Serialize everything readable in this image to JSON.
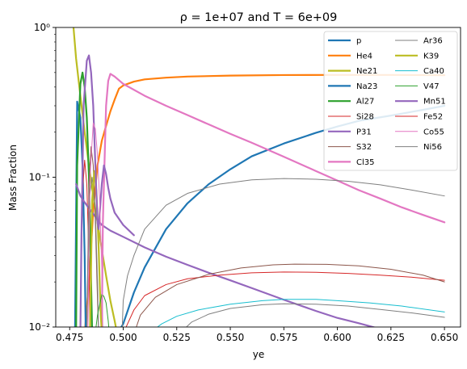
{
  "chart_data": {
    "type": "line",
    "title": "ρ = 1e+07 and T = 6e+09",
    "xlabel": "ye",
    "ylabel": "Mass Fraction",
    "xlim": [
      0.4685,
      0.6575
    ],
    "ylim": [
      0.01,
      1.0
    ],
    "yscale": "log",
    "x_ticks": [
      0.475,
      0.5,
      0.525,
      0.55,
      0.575,
      0.6,
      0.625,
      0.65
    ],
    "x_tick_labels": [
      "0.475",
      "0.500",
      "0.525",
      "0.550",
      "0.575",
      "0.600",
      "0.625",
      "0.650"
    ],
    "y_ticks": [
      0.01,
      0.1,
      1.0
    ],
    "y_tick_labels": [
      "10⁻²",
      "10⁻¹",
      "10⁰"
    ],
    "legend_position": "top-right",
    "grid": false,
    "series": [
      {
        "name": "p",
        "color": "#1f77b4",
        "width": 2.2,
        "points": [
          [
            0.498,
            0.0094
          ],
          [
            0.5,
            0.0105
          ],
          [
            0.505,
            0.017
          ],
          [
            0.51,
            0.025
          ],
          [
            0.52,
            0.045
          ],
          [
            0.53,
            0.067
          ],
          [
            0.54,
            0.09
          ],
          [
            0.55,
            0.113
          ],
          [
            0.56,
            0.138
          ],
          [
            0.575,
            0.168
          ],
          [
            0.59,
            0.198
          ],
          [
            0.6,
            0.218
          ],
          [
            0.61,
            0.238
          ],
          [
            0.625,
            0.258
          ],
          [
            0.64,
            0.282
          ],
          [
            0.65,
            0.3
          ]
        ]
      },
      {
        "name": "He4",
        "color": "#ff7f0e",
        "width": 2.2,
        "points": [
          [
            0.482,
            0.009
          ],
          [
            0.484,
            0.02
          ],
          [
            0.486,
            0.06
          ],
          [
            0.488,
            0.12
          ],
          [
            0.49,
            0.175
          ],
          [
            0.492,
            0.22
          ],
          [
            0.494,
            0.275
          ],
          [
            0.496,
            0.33
          ],
          [
            0.498,
            0.39
          ],
          [
            0.5,
            0.41
          ],
          [
            0.505,
            0.435
          ],
          [
            0.51,
            0.45
          ],
          [
            0.52,
            0.462
          ],
          [
            0.53,
            0.47
          ],
          [
            0.55,
            0.477
          ],
          [
            0.575,
            0.481
          ],
          [
            0.6,
            0.482
          ],
          [
            0.625,
            0.482
          ],
          [
            0.65,
            0.48
          ]
        ]
      },
      {
        "name": "Ne21",
        "color": "#bcbd22",
        "width": 2.2,
        "points": [
          [
            0.4765,
            1.12
          ],
          [
            0.478,
            0.62
          ],
          [
            0.48,
            0.35
          ],
          [
            0.482,
            0.2
          ],
          [
            0.484,
            0.12
          ],
          [
            0.486,
            0.075
          ],
          [
            0.488,
            0.05
          ],
          [
            0.49,
            0.033
          ],
          [
            0.492,
            0.022
          ],
          [
            0.494,
            0.015
          ],
          [
            0.496,
            0.011
          ],
          [
            0.497,
            0.0093
          ]
        ]
      },
      {
        "name": "Na23",
        "color": "#1f77b4",
        "width": 2.2,
        "points": [
          [
            0.4775,
            0.0092
          ],
          [
            0.4785,
            0.32
          ],
          [
            0.48,
            0.25
          ],
          [
            0.481,
            0.12
          ],
          [
            0.482,
            0.03
          ],
          [
            0.4825,
            0.0092
          ]
        ]
      },
      {
        "name": "Al27",
        "color": "#2ca02c",
        "width": 2.2,
        "points": [
          [
            0.478,
            0.0092
          ],
          [
            0.4785,
            0.12
          ],
          [
            0.48,
            0.42
          ],
          [
            0.481,
            0.5
          ],
          [
            0.482,
            0.4
          ],
          [
            0.483,
            0.25
          ],
          [
            0.484,
            0.1
          ],
          [
            0.485,
            0.02
          ],
          [
            0.4855,
            0.0092
          ]
        ]
      },
      {
        "name": "Si28",
        "color": "#d62728",
        "width": 1.0,
        "points": [
          [
            0.48,
            0.0092
          ],
          [
            0.481,
            0.08
          ],
          [
            0.482,
            0.13
          ],
          [
            0.483,
            0.09
          ],
          [
            0.484,
            0.03
          ],
          [
            0.4845,
            0.0092
          ]
        ]
      },
      {
        "name": "P31",
        "color": "#9467bd",
        "width": 2.2,
        "points": [
          [
            0.478,
            0.09
          ],
          [
            0.48,
            0.075
          ],
          [
            0.482,
            0.068
          ],
          [
            0.484,
            0.062
          ],
          [
            0.486,
            0.057
          ],
          [
            0.488,
            0.052
          ],
          [
            0.49,
            0.048
          ],
          [
            0.494,
            0.044
          ],
          [
            0.5,
            0.04
          ],
          [
            0.51,
            0.034
          ],
          [
            0.52,
            0.0295
          ],
          [
            0.53,
            0.026
          ],
          [
            0.54,
            0.023
          ],
          [
            0.55,
            0.0205
          ],
          [
            0.56,
            0.0182
          ],
          [
            0.575,
            0.0152
          ],
          [
            0.59,
            0.0128
          ],
          [
            0.6,
            0.0115
          ],
          [
            0.61,
            0.0106
          ],
          [
            0.62,
            0.0097
          ],
          [
            0.625,
            0.0094
          ]
        ]
      },
      {
        "name": "S32",
        "color": "#8c564b",
        "width": 1.0,
        "points": [
          [
            0.483,
            0.0092
          ],
          [
            0.484,
            0.09
          ],
          [
            0.485,
            0.16
          ],
          [
            0.486,
            0.12
          ],
          [
            0.487,
            0.05
          ],
          [
            0.488,
            0.015
          ],
          [
            0.4885,
            0.0092
          ]
        ]
      },
      {
        "name": "Cl35",
        "color": "#e377c2",
        "width": 2.2,
        "points": [
          [
            0.49,
            0.0092
          ],
          [
            0.4905,
            0.05
          ],
          [
            0.492,
            0.3
          ],
          [
            0.493,
            0.44
          ],
          [
            0.494,
            0.49
          ],
          [
            0.496,
            0.47
          ],
          [
            0.5,
            0.42
          ],
          [
            0.51,
            0.35
          ],
          [
            0.52,
            0.3
          ],
          [
            0.53,
            0.26
          ],
          [
            0.54,
            0.225
          ],
          [
            0.55,
            0.195
          ],
          [
            0.56,
            0.17
          ],
          [
            0.575,
            0.137
          ],
          [
            0.59,
            0.11
          ],
          [
            0.6,
            0.095
          ],
          [
            0.61,
            0.082
          ],
          [
            0.62,
            0.072
          ],
          [
            0.63,
            0.063
          ],
          [
            0.64,
            0.056
          ],
          [
            0.65,
            0.05
          ]
        ]
      },
      {
        "name": "Ar36",
        "color": "#7f7f7f",
        "width": 1.0,
        "points": [
          [
            0.483,
            0.0092
          ],
          [
            0.484,
            0.07
          ],
          [
            0.4855,
            0.1
          ],
          [
            0.487,
            0.06
          ],
          [
            0.488,
            0.02
          ],
          [
            0.4885,
            0.0092
          ]
        ]
      },
      {
        "name": "K39",
        "color": "#bcbd22",
        "width": 2.2,
        "points": [
          [
            0.4845,
            0.0092
          ],
          [
            0.4855,
            0.07
          ],
          [
            0.4865,
            0.11
          ],
          [
            0.4875,
            0.08
          ],
          [
            0.4885,
            0.035
          ],
          [
            0.4895,
            0.012
          ],
          [
            0.49,
            0.0092
          ]
        ]
      },
      {
        "name": "Ca40",
        "color": "#17becf",
        "width": 1.0,
        "points": [
          [
            0.5135,
            0.0094
          ],
          [
            0.518,
            0.0105
          ],
          [
            0.525,
            0.0118
          ],
          [
            0.535,
            0.013
          ],
          [
            0.55,
            0.0142
          ],
          [
            0.565,
            0.015
          ],
          [
            0.575,
            0.0153
          ],
          [
            0.59,
            0.0153
          ],
          [
            0.6,
            0.015
          ],
          [
            0.615,
            0.0145
          ],
          [
            0.63,
            0.0138
          ],
          [
            0.65,
            0.0126
          ]
        ]
      },
      {
        "name": "V47",
        "color": "#2ca02c",
        "width": 1.0,
        "points": [
          [
            0.487,
            0.0092
          ],
          [
            0.488,
            0.012
          ],
          [
            0.49,
            0.0165
          ],
          [
            0.491,
            0.016
          ],
          [
            0.492,
            0.0145
          ],
          [
            0.493,
            0.011
          ],
          [
            0.4935,
            0.0092
          ]
        ]
      },
      {
        "name": "Mn51",
        "color": "#9467bd",
        "width": 2.2,
        "points": [
          [
            0.48,
            0.0092
          ],
          [
            0.4805,
            0.04
          ],
          [
            0.4815,
            0.3
          ],
          [
            0.483,
            0.6
          ],
          [
            0.484,
            0.65
          ],
          [
            0.485,
            0.5
          ],
          [
            0.486,
            0.3
          ],
          [
            0.487,
            0.12
          ],
          [
            0.488,
            0.05
          ],
          [
            0.4885,
            0.045
          ],
          [
            0.49,
            0.09
          ],
          [
            0.491,
            0.12
          ],
          [
            0.492,
            0.105
          ],
          [
            0.493,
            0.085
          ],
          [
            0.494,
            0.072
          ],
          [
            0.496,
            0.058
          ],
          [
            0.5,
            0.048
          ],
          [
            0.505,
            0.041
          ]
        ]
      },
      {
        "name": "Fe52",
        "color": "#d62728",
        "width": 1.0,
        "points": [
          [
            0.5005,
            0.0094
          ],
          [
            0.505,
            0.013
          ],
          [
            0.51,
            0.0162
          ],
          [
            0.52,
            0.0192
          ],
          [
            0.53,
            0.021
          ],
          [
            0.545,
            0.0222
          ],
          [
            0.56,
            0.023
          ],
          [
            0.575,
            0.0233
          ],
          [
            0.59,
            0.0232
          ],
          [
            0.605,
            0.0228
          ],
          [
            0.62,
            0.0222
          ],
          [
            0.635,
            0.0215
          ],
          [
            0.65,
            0.0205
          ]
        ]
      },
      {
        "name": "Co55",
        "color": "#e377c2",
        "width": 1.0,
        "points": [
          [
            0.4835,
            0.0092
          ],
          [
            0.4845,
            0.1
          ],
          [
            0.486,
            0.23
          ],
          [
            0.487,
            0.21
          ],
          [
            0.488,
            0.14
          ],
          [
            0.489,
            0.07
          ],
          [
            0.49,
            0.025
          ],
          [
            0.4905,
            0.0092
          ]
        ]
      },
      {
        "name": "Ni56",
        "color": "#7f7f7f",
        "width": 1.0,
        "points": [
          [
            0.4995,
            0.0094
          ],
          [
            0.5,
            0.015
          ],
          [
            0.502,
            0.022
          ],
          [
            0.505,
            0.03
          ],
          [
            0.51,
            0.045
          ],
          [
            0.52,
            0.065
          ],
          [
            0.53,
            0.078
          ],
          [
            0.545,
            0.09
          ],
          [
            0.56,
            0.096
          ],
          [
            0.575,
            0.098
          ],
          [
            0.59,
            0.097
          ],
          [
            0.605,
            0.094
          ],
          [
            0.62,
            0.089
          ],
          [
            0.635,
            0.082
          ],
          [
            0.65,
            0.075
          ]
        ]
      },
      {
        "name": "",
        "color": "#8c564b",
        "width": 1.0,
        "points": [
          [
            0.5055,
            0.0094
          ],
          [
            0.508,
            0.012
          ],
          [
            0.515,
            0.0158
          ],
          [
            0.525,
            0.0192
          ],
          [
            0.54,
            0.0225
          ],
          [
            0.555,
            0.0248
          ],
          [
            0.57,
            0.026
          ],
          [
            0.58,
            0.0263
          ],
          [
            0.595,
            0.0262
          ],
          [
            0.61,
            0.0256
          ],
          [
            0.625,
            0.0243
          ],
          [
            0.64,
            0.0222
          ],
          [
            0.65,
            0.02
          ]
        ]
      },
      {
        "name": "",
        "color": "#7f7f7f",
        "width": 1.0,
        "points": [
          [
            0.5275,
            0.0094
          ],
          [
            0.532,
            0.0108
          ],
          [
            0.54,
            0.0122
          ],
          [
            0.55,
            0.0133
          ],
          [
            0.565,
            0.0141
          ],
          [
            0.575,
            0.0143
          ],
          [
            0.59,
            0.0142
          ],
          [
            0.605,
            0.0138
          ],
          [
            0.62,
            0.0131
          ],
          [
            0.635,
            0.0124
          ],
          [
            0.65,
            0.0116
          ]
        ]
      }
    ]
  }
}
